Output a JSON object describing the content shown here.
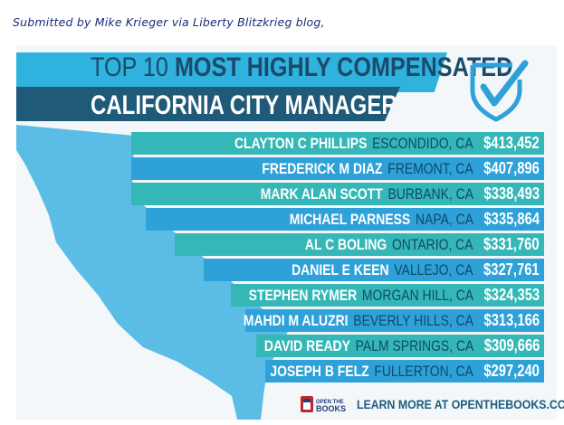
{
  "caption": "Submitted by Mike Krieger via Liberty Blitzkrieg blog,",
  "title": {
    "line1_part1": "TOP 10",
    "line1_part2": "MOST HIGHLY COMPENSATED",
    "line2": "CALIFORNIA CITY MANAGERS"
  },
  "rows": [
    {
      "name": "CLAYTON C PHILLIPS",
      "city": "ESCONDIDO, CA",
      "salary": "$413,452"
    },
    {
      "name": "FREDERICK M DIAZ",
      "city": "FREMONT, CA",
      "salary": "$407,896"
    },
    {
      "name": "MARK ALAN SCOTT",
      "city": "BURBANK, CA",
      "salary": "$338,493"
    },
    {
      "name": "MICHAEL PARNESS",
      "city": "NAPA, CA",
      "salary": "$335,864"
    },
    {
      "name": "AL C BOLING",
      "city": "ONTARIO, CA",
      "salary": "$331,760"
    },
    {
      "name": "DANIEL E KEEN",
      "city": "VALLEJO, CA",
      "salary": "$327,761"
    },
    {
      "name": "STEPHEN RYMER",
      "city": "MORGAN HILL, CA",
      "salary": "$324,353"
    },
    {
      "name": "MAHDI M ALUZRI",
      "city": "BEVERLY HILLS, CA",
      "salary": "$313,166"
    },
    {
      "name": "DAVID READY",
      "city": "PALM SPRINGS, CA",
      "salary": "$309,666"
    },
    {
      "name": "JOSEPH B FELZ",
      "city": "FULLERTON, CA",
      "salary": "$297,240"
    }
  ],
  "footer": {
    "learn_more": "LEARN MORE AT",
    "url": "OPENTHEBOOKS.COM",
    "logo_line1": "OPEN THE",
    "logo_line2": "BOOKS"
  },
  "colors": {
    "title_light": "#2fb2dd",
    "title_dark": "#205a79",
    "row_teal": "#36b7b7",
    "row_blue": "#2ea1d8",
    "map": "#5bbde6"
  }
}
